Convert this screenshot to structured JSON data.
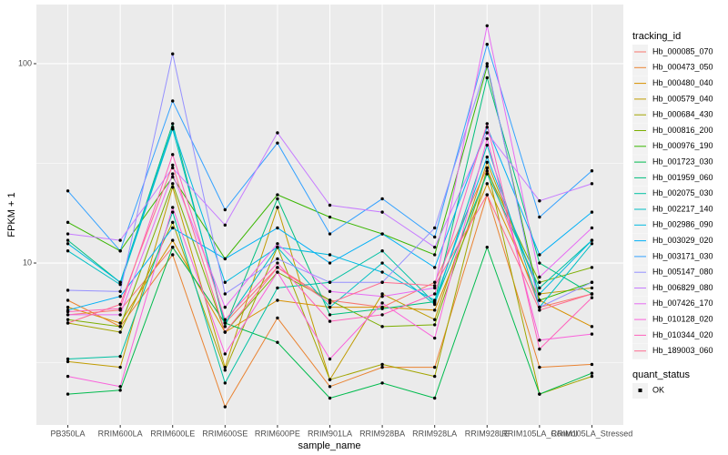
{
  "chart_data": {
    "type": "line",
    "x_label": "sample_name",
    "y_label": "FPKM + 1",
    "y_scale": "log",
    "grid": true,
    "legend_title": "tracking_id",
    "legend_position": "right",
    "point_legend_title": "quant_status",
    "point_legend": [
      "OK"
    ],
    "point_color": "#000000",
    "categories": [
      "PB350LA",
      "RRIM600LA",
      "RRIM600LE",
      "RRIM600SE",
      "RRIM600PE",
      "RRIM901LA",
      "RRIM928BA",
      "RRIM928LA",
      "RRIM928LE",
      "RRIM105LA_Control",
      "RRIM105LA_Stressed"
    ],
    "ylim": [
      1.54,
      198
    ],
    "yticks": [
      10,
      100
    ],
    "series": [
      {
        "name": "Hb_000085_070",
        "color": "#F8766D",
        "values": [
          5.5,
          5.8,
          12,
          5,
          9.5,
          6.5,
          6,
          8,
          30,
          6,
          7
        ]
      },
      {
        "name": "Hb_000473_050",
        "color": "#EA8331",
        "values": [
          6.5,
          4.8,
          11,
          1.9,
          5.3,
          2.4,
          3.0,
          3.0,
          22,
          3.0,
          3.1
        ]
      },
      {
        "name": "Hb_000480_040",
        "color": "#D89000",
        "values": [
          6,
          5,
          13,
          4.5,
          6.5,
          6,
          6,
          5.8,
          25,
          6.5,
          4.8
        ]
      },
      {
        "name": "Hb_000579_040",
        "color": "#C09B00",
        "values": [
          3.2,
          3.0,
          24,
          3,
          19,
          2.6,
          7,
          5.2,
          32,
          7,
          7.5
        ]
      },
      {
        "name": "Hb_000684_430",
        "color": "#A3A500",
        "values": [
          5,
          4.5,
          16,
          2.9,
          12,
          2.6,
          3.1,
          2.7,
          30,
          2.2,
          2.7
        ]
      },
      {
        "name": "Hb_000816_200",
        "color": "#7CAE00",
        "values": [
          5.2,
          4.8,
          25,
          4.5,
          9,
          6.5,
          4.8,
          4.9,
          29,
          8,
          9.5
        ]
      },
      {
        "name": "Hb_000976_190",
        "color": "#39B600",
        "values": [
          16,
          11.5,
          27,
          10.5,
          22,
          17,
          14,
          11,
          97,
          6.5,
          8
        ]
      },
      {
        "name": "Hb_001723_030",
        "color": "#00BB4E",
        "values": [
          2.2,
          2.3,
          12,
          5,
          4,
          2.1,
          2.5,
          2.1,
          12,
          2.2,
          2.8
        ]
      },
      {
        "name": "Hb_001959_060",
        "color": "#00BF7D",
        "values": [
          13,
          8,
          50,
          4.8,
          21,
          5.5,
          5.9,
          6.4,
          85,
          10,
          7
        ]
      },
      {
        "name": "Hb_002075_030",
        "color": "#00C1A3",
        "values": [
          3.3,
          3.4,
          18,
          2.5,
          7.5,
          8,
          11.5,
          6.3,
          28,
          7.5,
          13
        ]
      },
      {
        "name": "Hb_002217_140",
        "color": "#00BFC4",
        "values": [
          11.5,
          7.8,
          47,
          5,
          12,
          6,
          10,
          6.2,
          39,
          6,
          12.5
        ]
      },
      {
        "name": "Hb_002986_090",
        "color": "#00BAE0",
        "values": [
          12.5,
          8,
          48,
          8,
          12,
          11,
          9,
          6.5,
          34,
          7,
          13
        ]
      },
      {
        "name": "Hb_003029_020",
        "color": "#00B0F6",
        "values": [
          5.8,
          6.8,
          15,
          10.5,
          15,
          10,
          14,
          9.5,
          48,
          11,
          18
        ]
      },
      {
        "name": "Hb_003171_030",
        "color": "#35A2FF",
        "values": [
          23,
          11.5,
          65,
          18.5,
          40,
          14,
          21,
          13.5,
          125,
          17,
          29
        ]
      },
      {
        "name": "Hb_005147_080",
        "color": "#9590FF",
        "values": [
          7.3,
          7.2,
          112,
          7,
          10.5,
          8,
          8,
          15,
          100,
          6,
          8
        ]
      },
      {
        "name": "Hb_006829_080",
        "color": "#C77CFF",
        "values": [
          14,
          13,
          30,
          15.5,
          45,
          19.5,
          18,
          12,
          45,
          20.5,
          25
        ]
      },
      {
        "name": "Hb_007426_170",
        "color": "#E76BF3",
        "values": [
          5.5,
          5.5,
          28,
          6,
          12.5,
          7.2,
          6.8,
          7.5,
          155,
          8.5,
          15
        ]
      },
      {
        "name": "Hb_010128_020",
        "color": "#FA62DB",
        "values": [
          2.7,
          2.4,
          19,
          3.5,
          9,
          3.3,
          6.3,
          4.2,
          42,
          4.1,
          4.4
        ]
      },
      {
        "name": "Hb_010344_020",
        "color": "#FF62BC",
        "values": [
          5.7,
          5.9,
          35,
          5.2,
          10,
          5.1,
          5.5,
          7,
          50,
          3.7,
          6.7
        ]
      },
      {
        "name": "Hb_189003_060",
        "color": "#FF6C91",
        "values": [
          5,
          6.2,
          31,
          4.5,
          9.5,
          6.3,
          8,
          7.7,
          22,
          5.8,
          7
        ]
      }
    ]
  }
}
